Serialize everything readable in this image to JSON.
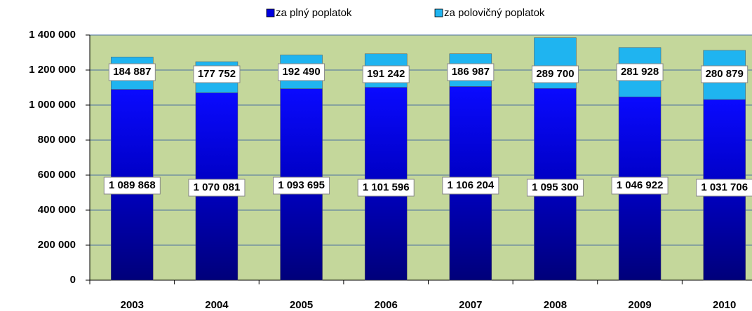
{
  "chart_data": {
    "type": "stacked_bar",
    "categories": [
      "2003",
      "2004",
      "2005",
      "2006",
      "2007",
      "2008",
      "2009",
      "2010"
    ],
    "series": [
      {
        "name": "za plný poplatok",
        "color": "#0000e0",
        "values": [
          1089868,
          1070081,
          1093695,
          1101596,
          1106204,
          1095300,
          1046922,
          1031706
        ],
        "value_labels": [
          "1 089 868",
          "1 070 081",
          "1 093 695",
          "1 101 596",
          "1 106 204",
          "1 095 300",
          "1 046 922",
          "1 031 706"
        ]
      },
      {
        "name": "za polovičný poplatok",
        "color": "#1fb4f0",
        "values": [
          184887,
          177752,
          192490,
          191242,
          186987,
          289700,
          281928,
          280879
        ],
        "value_labels": [
          "184 887",
          "177 752",
          "192 490",
          "191 242",
          "186 987",
          "289 700",
          "281 928",
          "280 879"
        ]
      }
    ],
    "ylim": [
      0,
      1400000
    ],
    "yticks": [
      0,
      {
        "value": 200000,
        "label": "200 000"
      },
      {
        "value": 400000,
        "label": "400 000"
      },
      {
        "value": 600000,
        "label": "600 000"
      },
      {
        "value": 800000,
        "label": "800 000"
      },
      {
        "value": 1000000,
        "label": "1 000 000"
      },
      {
        "value": 1200000,
        "label": "1 200 000"
      },
      {
        "value": 1400000,
        "label": "1 400 000"
      }
    ],
    "grid": true,
    "legend": "top",
    "background": "#c4d79b"
  }
}
